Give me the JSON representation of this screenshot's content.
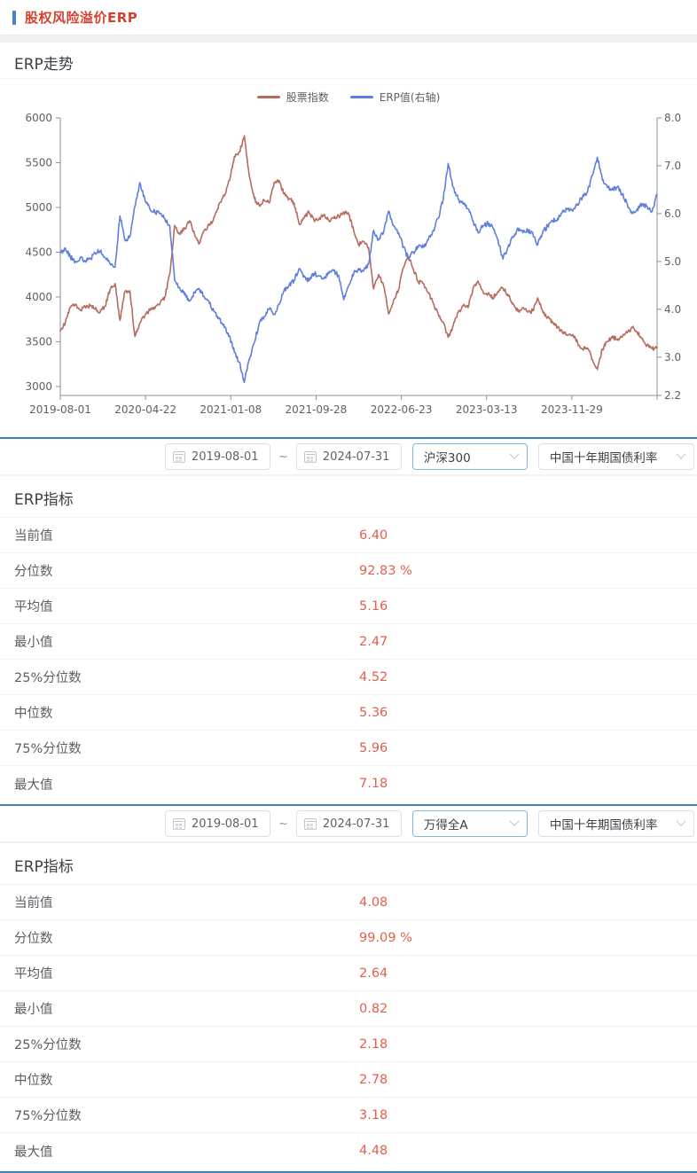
{
  "header": {
    "title": "股权风险溢价ERP"
  },
  "trend_section": {
    "title": "ERP走势"
  },
  "icons": {
    "calendar": "calendar-icon",
    "dropdown": "chevron-down-icon"
  },
  "colors": {
    "accent_red": "#d5402f",
    "value_red": "#e2604c",
    "line_red": "#b96a5e",
    "line_blue": "#5f7fdc",
    "divider_blue": "#3d80c4",
    "accent_bar_blue": "#4a7ede",
    "active_select_border": "#7db9e8"
  },
  "filters": [
    {
      "start_date": "2019-08-01",
      "separator": "~",
      "end_date": "2024-07-31",
      "index_option": "沪深300",
      "rate_option": "中国十年期国债利率"
    },
    {
      "start_date": "2019-08-01",
      "separator": "~",
      "end_date": "2024-07-31",
      "index_option": "万得全A",
      "rate_option": "中国十年期国债利率"
    }
  ],
  "tables": [
    {
      "title": "ERP指标",
      "rows": [
        {
          "label": "当前值",
          "value": "6.40"
        },
        {
          "label": "分位数",
          "value": "92.83 %"
        },
        {
          "label": "平均值",
          "value": "5.16"
        },
        {
          "label": "最小值",
          "value": "2.47"
        },
        {
          "label": "25%分位数",
          "value": "4.52"
        },
        {
          "label": "中位数",
          "value": "5.36"
        },
        {
          "label": "75%分位数",
          "value": "5.96"
        },
        {
          "label": "最大值",
          "value": "7.18"
        }
      ]
    },
    {
      "title": "ERP指标",
      "rows": [
        {
          "label": "当前值",
          "value": "4.08"
        },
        {
          "label": "分位数",
          "value": "99.09 %"
        },
        {
          "label": "平均值",
          "value": "2.64"
        },
        {
          "label": "最小值",
          "value": "0.82"
        },
        {
          "label": "25%分位数",
          "value": "2.18"
        },
        {
          "label": "中位数",
          "value": "2.78"
        },
        {
          "label": "75%分位数",
          "value": "3.18"
        },
        {
          "label": "最大值",
          "value": "4.48"
        }
      ]
    }
  ],
  "chart_data": {
    "type": "line",
    "title": "ERP走势",
    "legend_position": "top",
    "grid": false,
    "x_start": "2019-08-01",
    "x_end": "2024-07-31",
    "x_tick_labels": [
      "2019-08-01",
      "2020-04-22",
      "2021-01-08",
      "2021-09-28",
      "2022-06-23",
      "2023-03-13",
      "2023-11-29"
    ],
    "left_axis": {
      "ticks": [
        6000,
        5500,
        5000,
        4500,
        4000,
        3500,
        3000
      ],
      "min": 2900,
      "max": 6000
    },
    "right_axis": {
      "ticks": [
        8.0,
        7.0,
        6.0,
        5.0,
        4.0,
        3.0,
        2.2
      ],
      "min": 2.2,
      "max": 8.0
    },
    "x": [
      "2019-08-01",
      "2019-08-16",
      "2019-09-01",
      "2019-09-16",
      "2019-10-01",
      "2019-10-16",
      "2019-11-01",
      "2019-11-16",
      "2019-12-01",
      "2019-12-16",
      "2020-01-01",
      "2020-01-16",
      "2020-02-01",
      "2020-02-16",
      "2020-03-01",
      "2020-03-16",
      "2020-04-01",
      "2020-04-16",
      "2020-05-01",
      "2020-05-16",
      "2020-06-01",
      "2020-06-16",
      "2020-07-01",
      "2020-07-16",
      "2020-08-01",
      "2020-08-16",
      "2020-09-01",
      "2020-09-16",
      "2020-10-01",
      "2020-10-16",
      "2020-11-01",
      "2020-11-16",
      "2020-12-01",
      "2020-12-16",
      "2021-01-01",
      "2021-01-16",
      "2021-02-01",
      "2021-02-16",
      "2021-03-01",
      "2021-03-16",
      "2021-04-01",
      "2021-04-16",
      "2021-05-01",
      "2021-05-16",
      "2021-06-01",
      "2021-06-16",
      "2021-07-01",
      "2021-07-16",
      "2021-08-01",
      "2021-08-16",
      "2021-09-01",
      "2021-09-16",
      "2021-10-01",
      "2021-10-16",
      "2021-11-01",
      "2021-11-16",
      "2021-12-01",
      "2021-12-16",
      "2022-01-01",
      "2022-01-16",
      "2022-02-01",
      "2022-02-16",
      "2022-03-01",
      "2022-03-16",
      "2022-04-01",
      "2022-04-16",
      "2022-05-01",
      "2022-05-16",
      "2022-06-01",
      "2022-06-16",
      "2022-07-01",
      "2022-07-16",
      "2022-08-01",
      "2022-08-16",
      "2022-09-01",
      "2022-09-16",
      "2022-10-01",
      "2022-10-16",
      "2022-11-01",
      "2022-11-16",
      "2022-12-01",
      "2022-12-16",
      "2023-01-01",
      "2023-01-16",
      "2023-02-01",
      "2023-02-16",
      "2023-03-01",
      "2023-03-16",
      "2023-04-01",
      "2023-04-16",
      "2023-05-01",
      "2023-05-16",
      "2023-06-01",
      "2023-06-16",
      "2023-07-01",
      "2023-07-16",
      "2023-08-01",
      "2023-08-16",
      "2023-09-01",
      "2023-09-16",
      "2023-10-01",
      "2023-10-16",
      "2023-11-01",
      "2023-11-16",
      "2023-12-01",
      "2023-12-16",
      "2024-01-01",
      "2024-01-16",
      "2024-02-01",
      "2024-02-16",
      "2024-03-01",
      "2024-03-16",
      "2024-04-01",
      "2024-04-16",
      "2024-05-01",
      "2024-05-16",
      "2024-06-01",
      "2024-06-16",
      "2024-07-01",
      "2024-07-16",
      "2024-07-31"
    ],
    "series": [
      {
        "name": "股票指数",
        "axis": "left",
        "color": "#b96a5e",
        "values": [
          3620,
          3710,
          3880,
          3920,
          3850,
          3890,
          3900,
          3870,
          3830,
          3900,
          4080,
          4150,
          3740,
          4060,
          4070,
          3560,
          3710,
          3790,
          3850,
          3870,
          3920,
          4000,
          4250,
          4800,
          4700,
          4770,
          4850,
          4700,
          4600,
          4750,
          4800,
          4900,
          5050,
          5130,
          5300,
          5570,
          5620,
          5800,
          5350,
          5100,
          5020,
          5080,
          5050,
          5280,
          5300,
          5150,
          5100,
          5050,
          4820,
          4880,
          4950,
          4860,
          4870,
          4920,
          4850,
          4880,
          4900,
          4950,
          4920,
          4740,
          4580,
          4620,
          4550,
          4090,
          4250,
          4130,
          3810,
          3960,
          4080,
          4330,
          4450,
          4310,
          4170,
          4150,
          4050,
          3930,
          3810,
          3720,
          3550,
          3680,
          3830,
          3900,
          3880,
          4100,
          4180,
          4060,
          4040,
          3990,
          4060,
          4100,
          4030,
          3930,
          3840,
          3880,
          3830,
          3850,
          3990,
          3840,
          3770,
          3710,
          3660,
          3600,
          3570,
          3580,
          3490,
          3420,
          3430,
          3300,
          3190,
          3420,
          3500,
          3560,
          3520,
          3550,
          3600,
          3660,
          3610,
          3540,
          3460,
          3420,
          3440
        ]
      },
      {
        "name": "ERP值(右轴)",
        "axis": "right",
        "color": "#5f7fdc",
        "values": [
          5.18,
          5.28,
          5.1,
          5.0,
          5.08,
          5.02,
          5.05,
          5.18,
          5.22,
          5.08,
          4.95,
          4.88,
          5.95,
          5.45,
          5.52,
          6.15,
          6.65,
          6.3,
          6.1,
          6.05,
          6.0,
          5.9,
          5.75,
          4.6,
          4.45,
          4.3,
          4.18,
          4.35,
          4.42,
          4.25,
          4.12,
          3.95,
          3.8,
          3.62,
          3.45,
          3.1,
          2.9,
          2.47,
          2.95,
          3.3,
          3.7,
          3.85,
          4.0,
          3.9,
          4.1,
          4.4,
          4.5,
          4.6,
          4.85,
          4.7,
          4.6,
          4.75,
          4.7,
          4.65,
          4.75,
          4.8,
          4.7,
          4.2,
          4.5,
          4.75,
          4.85,
          4.8,
          4.95,
          5.65,
          5.45,
          5.6,
          6.05,
          5.75,
          5.6,
          5.3,
          5.05,
          5.2,
          5.3,
          5.3,
          5.45,
          5.65,
          5.9,
          6.3,
          7.05,
          6.55,
          6.3,
          6.2,
          6.1,
          5.85,
          5.6,
          5.75,
          5.8,
          5.7,
          5.45,
          5.05,
          5.3,
          5.5,
          5.7,
          5.6,
          5.65,
          5.6,
          5.35,
          5.6,
          5.75,
          5.85,
          5.9,
          6.05,
          6.1,
          6.05,
          6.2,
          6.35,
          6.45,
          6.8,
          7.18,
          6.7,
          6.55,
          6.5,
          6.55,
          6.4,
          6.2,
          6.0,
          6.1,
          6.2,
          6.15,
          6.05,
          6.4
        ]
      }
    ]
  }
}
